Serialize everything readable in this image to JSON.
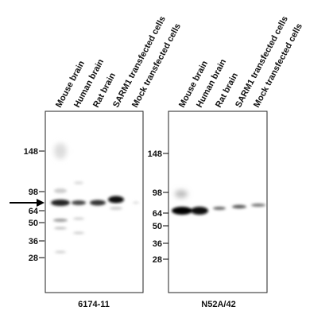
{
  "panels": [
    {
      "lanes": [
        "Mouse brain",
        "Human brain",
        "Rat brain",
        "SARM1 transfected cells",
        "Mock transfected cells"
      ],
      "markers": [
        148,
        98,
        64,
        50,
        36,
        28
      ],
      "caption": "6174-11"
    },
    {
      "lanes": [
        "Mouse brain",
        "Human brain",
        "Rat brain",
        "SARM1 transfected cells",
        "Mock transfected cells"
      ],
      "markers": [
        148,
        98,
        64,
        50,
        36,
        28
      ],
      "caption": "N52A/42"
    }
  ]
}
